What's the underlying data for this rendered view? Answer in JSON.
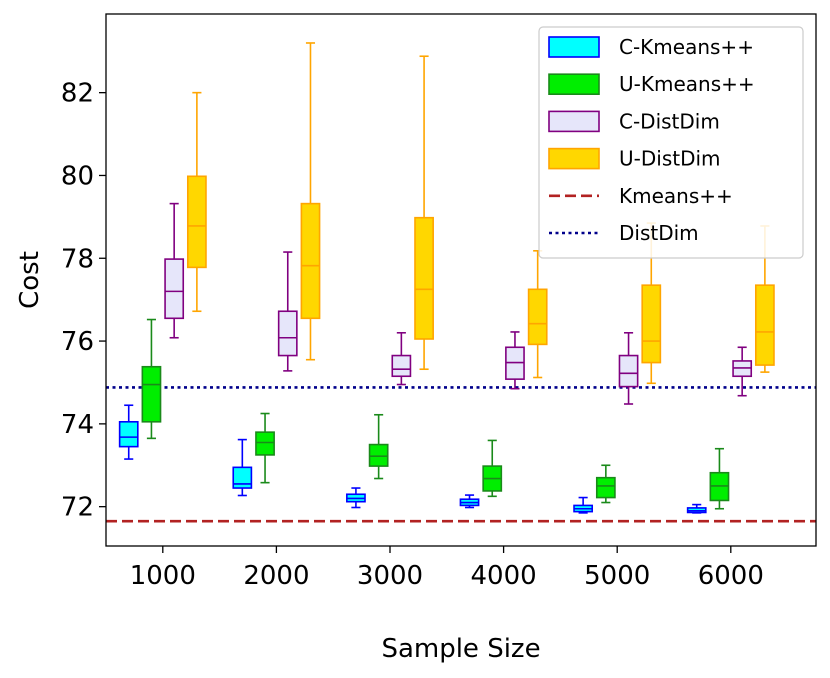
{
  "chart_data": {
    "type": "box",
    "title": "",
    "xlabel": "Sample Size",
    "ylabel": "Cost",
    "categories": [
      "1000",
      "2000",
      "3000",
      "4000",
      "5000",
      "6000"
    ],
    "x_values": [
      1000,
      2000,
      3000,
      4000,
      5000,
      6000
    ],
    "xlim": [
      500,
      6750
    ],
    "ylim": [
      71.05,
      83.9
    ],
    "yticks": [
      72,
      74,
      76,
      78,
      80,
      82
    ],
    "ytick_labels": [
      "72",
      "74",
      "76",
      "78",
      "80",
      "82"
    ],
    "grid": false,
    "legend_position": "top-right",
    "series": [
      {
        "name": "C-Kmeans++",
        "fill": "#00ffff",
        "edge": "#0000ff",
        "offset": -0.3,
        "boxes": [
          {
            "whisker_low": 73.15,
            "q1": 73.45,
            "median": 73.68,
            "q3": 74.05,
            "whisker_high": 74.45
          },
          {
            "whisker_low": 72.27,
            "q1": 72.45,
            "median": 72.55,
            "q3": 72.95,
            "whisker_high": 73.62
          },
          {
            "whisker_low": 71.98,
            "q1": 72.12,
            "median": 72.2,
            "q3": 72.3,
            "whisker_high": 72.45
          },
          {
            "whisker_low": 71.98,
            "q1": 72.03,
            "median": 72.1,
            "q3": 72.18,
            "whisker_high": 72.28
          },
          {
            "whisker_low": 71.85,
            "q1": 71.88,
            "median": 71.95,
            "q3": 72.03,
            "whisker_high": 72.22
          },
          {
            "whisker_low": 71.85,
            "q1": 71.86,
            "median": 71.9,
            "q3": 71.97,
            "whisker_high": 72.05
          }
        ]
      },
      {
        "name": "U-Kmeans++",
        "fill": "#00ee00",
        "edge": "#1a8a1a",
        "offset": -0.1,
        "boxes": [
          {
            "whisker_low": 73.65,
            "q1": 74.05,
            "median": 74.95,
            "q3": 75.38,
            "whisker_high": 76.52
          },
          {
            "whisker_low": 72.58,
            "q1": 73.25,
            "median": 73.55,
            "q3": 73.8,
            "whisker_high": 74.25
          },
          {
            "whisker_low": 72.68,
            "q1": 72.98,
            "median": 73.22,
            "q3": 73.5,
            "whisker_high": 74.22
          },
          {
            "whisker_low": 72.25,
            "q1": 72.38,
            "median": 72.68,
            "q3": 72.98,
            "whisker_high": 73.6
          },
          {
            "whisker_low": 72.1,
            "q1": 72.22,
            "median": 72.5,
            "q3": 72.7,
            "whisker_high": 73.0
          },
          {
            "whisker_low": 71.95,
            "q1": 72.15,
            "median": 72.5,
            "q3": 72.82,
            "whisker_high": 73.4
          }
        ]
      },
      {
        "name": "C-DistDim",
        "fill": "#e6e6fa",
        "edge": "#800080",
        "offset": 0.1,
        "boxes": [
          {
            "whisker_low": 76.08,
            "q1": 76.55,
            "median": 77.2,
            "q3": 77.98,
            "whisker_high": 79.32
          },
          {
            "whisker_low": 75.28,
            "q1": 75.65,
            "median": 76.08,
            "q3": 76.72,
            "whisker_high": 78.15
          },
          {
            "whisker_low": 74.95,
            "q1": 75.15,
            "median": 75.32,
            "q3": 75.65,
            "whisker_high": 76.2
          },
          {
            "whisker_low": 74.85,
            "q1": 75.08,
            "median": 75.48,
            "q3": 75.85,
            "whisker_high": 76.22
          },
          {
            "whisker_low": 74.48,
            "q1": 74.9,
            "median": 75.22,
            "q3": 75.65,
            "whisker_high": 76.2
          },
          {
            "whisker_low": 74.68,
            "q1": 75.15,
            "median": 75.35,
            "q3": 75.52,
            "whisker_high": 75.85
          }
        ]
      },
      {
        "name": "U-DistDim",
        "fill": "#ffd700",
        "edge": "#ffa500",
        "offset": 0.3,
        "boxes": [
          {
            "whisker_low": 76.72,
            "q1": 77.78,
            "median": 78.78,
            "q3": 79.98,
            "whisker_high": 82.0
          },
          {
            "whisker_low": 75.55,
            "q1": 76.55,
            "median": 77.82,
            "q3": 79.32,
            "whisker_high": 83.2
          },
          {
            "whisker_low": 75.32,
            "q1": 76.05,
            "median": 77.25,
            "q3": 78.98,
            "whisker_high": 82.88
          },
          {
            "whisker_low": 75.12,
            "q1": 75.92,
            "median": 76.42,
            "q3": 77.25,
            "whisker_high": 78.18
          },
          {
            "whisker_low": 74.98,
            "q1": 75.48,
            "median": 76.0,
            "q3": 77.35,
            "whisker_high": 78.85
          },
          {
            "whisker_low": 75.25,
            "q1": 75.42,
            "median": 76.22,
            "q3": 77.35,
            "whisker_high": 78.78
          }
        ]
      }
    ],
    "reference_lines": [
      {
        "name": "Kmeans++",
        "value": 71.65,
        "color": "#b22222",
        "style": "dashed"
      },
      {
        "name": "DistDim",
        "value": 74.88,
        "color": "#00008b",
        "style": "dotted"
      }
    ],
    "legend": [
      {
        "label": "C-Kmeans++",
        "kind": "patch",
        "fill": "#00ffff",
        "edge": "#0000ff"
      },
      {
        "label": "U-Kmeans++",
        "kind": "patch",
        "fill": "#00ee00",
        "edge": "#1a8a1a"
      },
      {
        "label": "C-DistDim",
        "kind": "patch",
        "fill": "#e6e6fa",
        "edge": "#800080"
      },
      {
        "label": "U-DistDim",
        "kind": "patch",
        "fill": "#ffd700",
        "edge": "#ffa500"
      },
      {
        "label": "Kmeans++",
        "kind": "line",
        "color": "#b22222",
        "style": "dashed"
      },
      {
        "label": "DistDim",
        "kind": "line",
        "color": "#00008b",
        "style": "dotted"
      }
    ]
  }
}
